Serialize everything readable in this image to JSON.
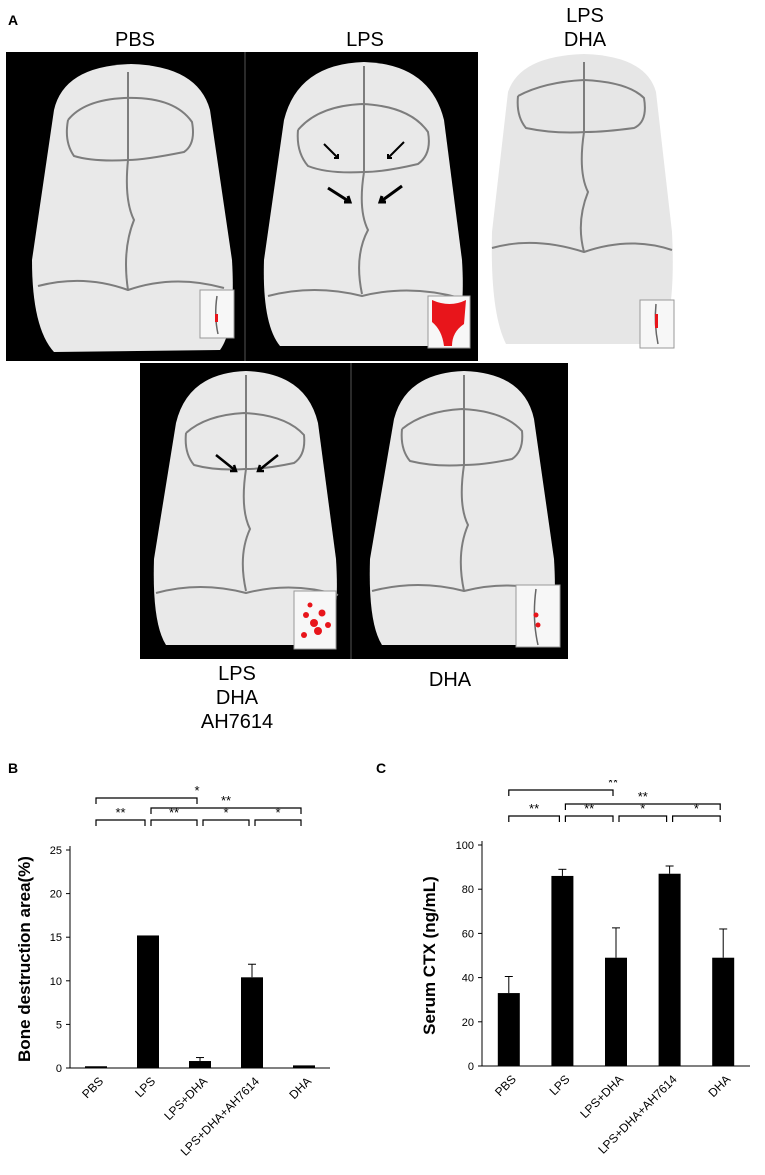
{
  "panel_a": {
    "letter": "A",
    "labels": [
      "PBS",
      "LPS",
      "LPS\nDHA",
      "LPS\nDHA\nAH7614",
      "DHA"
    ],
    "colors": {
      "bone": "#e9e9e9",
      "suture": "#7d7d7d",
      "background": "#000000",
      "highlight": "#e8151b"
    }
  },
  "chart_data": [
    {
      "letter": "B",
      "type": "bar",
      "categories": [
        "PBS",
        "LPS",
        "LPS+DHA",
        "LPS+DHA+AH7614",
        "DHA"
      ],
      "values": [
        0.2,
        15.2,
        0.8,
        10.4,
        0.3
      ],
      "errors": [
        0,
        0,
        0.4,
        1.5,
        0
      ],
      "ylabel": "Bone destruction area(%)",
      "ylim": [
        0,
        25
      ],
      "yticks": [
        "0",
        "5",
        "10",
        "15",
        "20",
        "25"
      ],
      "grid": false,
      "bar_color": "#000000",
      "brackets": [
        {
          "from": 0,
          "to": 1,
          "label": "**"
        },
        {
          "from": 1,
          "to": 2,
          "label": "**"
        },
        {
          "from": 2,
          "to": 3,
          "label": "*"
        },
        {
          "from": 3,
          "to": 4,
          "label": "*"
        },
        {
          "from": 1,
          "to": 4,
          "label": "**"
        },
        {
          "from": 0,
          "to": 2,
          "label": "*"
        }
      ]
    },
    {
      "letter": "C",
      "type": "bar",
      "categories": [
        "PBS",
        "LPS",
        "LPS+DHA",
        "LPS+DHA+AH7614",
        "DHA"
      ],
      "values": [
        33,
        86,
        49,
        87,
        49
      ],
      "errors": [
        7.5,
        3,
        13.5,
        3.5,
        13
      ],
      "ylabel": "Serum CTX (ng/mL)",
      "ylim": [
        0,
        100
      ],
      "yticks": [
        "0",
        "20",
        "40",
        "60",
        "80",
        "100"
      ],
      "grid": false,
      "bar_color": "#000000",
      "brackets": [
        {
          "from": 0,
          "to": 1,
          "label": "**"
        },
        {
          "from": 1,
          "to": 2,
          "label": "**"
        },
        {
          "from": 2,
          "to": 3,
          "label": "*"
        },
        {
          "from": 3,
          "to": 4,
          "label": "*"
        },
        {
          "from": 1,
          "to": 4,
          "label": "**"
        },
        {
          "from": 0,
          "to": 2,
          "label": "**"
        }
      ]
    }
  ]
}
